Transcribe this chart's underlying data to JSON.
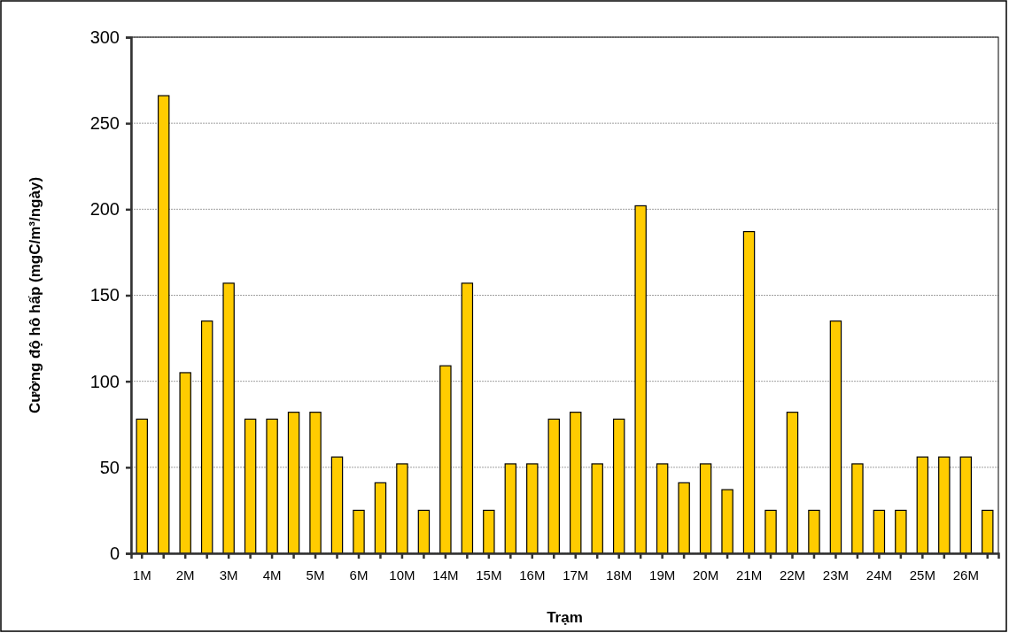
{
  "chart_data": {
    "type": "bar",
    "xlabel": "Trạm",
    "ylabel": "Cường độ hô hấp (mgC/m³/ngày)",
    "categories": [
      "1M",
      null,
      "2M",
      null,
      "3M",
      null,
      "4M",
      null,
      "5M",
      null,
      "6M",
      null,
      "10M",
      null,
      "14M",
      null,
      "15M",
      null,
      "16M",
      null,
      "17M",
      null,
      "18M",
      null,
      "19M",
      null,
      "20M",
      null,
      "21M",
      null,
      "22M",
      null,
      "23M",
      null,
      "24M",
      null,
      "25M",
      null,
      "26M",
      null
    ],
    "values": [
      78,
      266,
      105,
      135,
      157,
      78,
      78,
      82,
      82,
      56,
      25,
      41,
      52,
      25,
      109,
      157,
      25,
      52,
      52,
      78,
      82,
      52,
      78,
      202,
      52,
      41,
      52,
      37,
      187,
      25,
      82,
      25,
      135,
      52,
      25,
      25,
      56,
      56,
      56,
      25
    ],
    "color": "#ffcc00",
    "ylim": [
      0,
      300
    ],
    "yticks": [
      0,
      50,
      100,
      150,
      200,
      250,
      300
    ],
    "grid": "y"
  }
}
